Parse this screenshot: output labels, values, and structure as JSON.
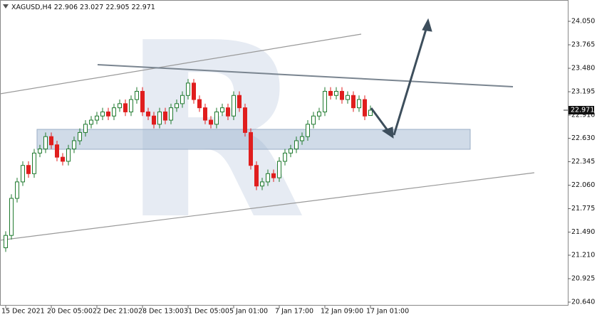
{
  "chart_data": {
    "type": "candlestick",
    "symbol": "XAGUSD,H4",
    "categories": [
      "15 Dec 2021",
      null,
      null,
      null,
      null,
      null,
      null,
      null,
      "20 Dec 05:00",
      null,
      null,
      null,
      null,
      null,
      null,
      null,
      "22 Dec 21:00",
      null,
      null,
      null,
      null,
      null,
      null,
      null,
      "28 Dec 13:00",
      null,
      null,
      null,
      null,
      null,
      null,
      null,
      "31 Dec 05:00",
      null,
      null,
      null,
      null,
      null,
      null,
      null,
      "5 Jan 01:00",
      null,
      null,
      null,
      null,
      null,
      null,
      null,
      "7 Jan 17:00",
      null,
      null,
      null,
      null,
      null,
      null,
      null,
      "12 Jan 09:00",
      null,
      null,
      null,
      null,
      null,
      null,
      null,
      "17 Jan 01:00"
    ],
    "open": [
      21.3,
      21.45,
      21.9,
      22.1,
      22.3,
      22.2,
      22.45,
      22.5,
      22.65,
      22.55,
      22.4,
      22.35,
      22.5,
      22.6,
      22.7,
      22.8,
      22.85,
      22.9,
      22.95,
      22.9,
      23.0,
      23.05,
      22.95,
      23.1,
      23.2,
      22.95,
      22.9,
      22.8,
      22.95,
      22.85,
      23.0,
      23.05,
      23.15,
      23.3,
      23.1,
      23.0,
      22.85,
      22.8,
      22.95,
      23.0,
      22.9,
      23.15,
      23.0,
      22.7,
      22.3,
      22.05,
      22.1,
      22.2,
      22.15,
      22.35,
      22.45,
      22.5,
      22.6,
      22.65,
      22.8,
      22.9,
      22.95,
      23.2,
      23.15,
      23.2,
      23.1,
      23.15,
      23.0,
      23.1,
      22.906
    ],
    "high": [
      21.5,
      21.95,
      22.15,
      22.35,
      22.35,
      22.5,
      22.55,
      22.7,
      22.7,
      22.6,
      22.45,
      22.55,
      22.65,
      22.75,
      22.85,
      22.9,
      22.95,
      23.0,
      23.0,
      23.05,
      23.1,
      23.1,
      23.15,
      23.25,
      23.25,
      23.0,
      22.95,
      23.0,
      23.0,
      23.05,
      23.1,
      23.2,
      23.35,
      23.35,
      23.15,
      23.05,
      22.9,
      23.0,
      23.05,
      23.05,
      23.2,
      23.2,
      23.05,
      22.75,
      22.35,
      22.15,
      22.25,
      22.25,
      22.4,
      22.5,
      22.55,
      22.65,
      22.7,
      22.85,
      22.95,
      23.0,
      23.25,
      23.25,
      23.25,
      23.25,
      23.2,
      23.2,
      23.15,
      23.15,
      23.027
    ],
    "low": [
      21.25,
      21.4,
      21.85,
      22.05,
      22.15,
      22.15,
      22.4,
      22.45,
      22.5,
      22.35,
      22.3,
      22.3,
      22.45,
      22.55,
      22.65,
      22.75,
      22.8,
      22.85,
      22.85,
      22.85,
      22.95,
      22.9,
      22.9,
      23.05,
      22.9,
      22.85,
      22.75,
      22.75,
      22.8,
      22.8,
      22.95,
      23.0,
      23.1,
      23.05,
      22.95,
      22.8,
      22.75,
      22.75,
      22.9,
      22.85,
      22.85,
      22.95,
      22.65,
      22.25,
      22.0,
      22.0,
      22.05,
      22.1,
      22.1,
      22.3,
      22.4,
      22.45,
      22.55,
      22.6,
      22.75,
      22.85,
      22.9,
      23.1,
      23.1,
      23.05,
      23.05,
      22.95,
      22.95,
      22.85,
      22.905
    ],
    "close": [
      21.45,
      21.9,
      22.1,
      22.3,
      22.2,
      22.45,
      22.5,
      22.65,
      22.55,
      22.4,
      22.35,
      22.5,
      22.6,
      22.7,
      22.8,
      22.85,
      22.9,
      22.95,
      22.9,
      23.0,
      23.05,
      22.95,
      23.1,
      23.2,
      22.95,
      22.9,
      22.8,
      22.95,
      22.85,
      23.0,
      23.05,
      23.15,
      23.3,
      23.1,
      23.0,
      22.85,
      22.8,
      22.95,
      23.0,
      22.9,
      23.15,
      23.0,
      22.7,
      22.3,
      22.05,
      22.1,
      22.2,
      22.15,
      22.35,
      22.45,
      22.5,
      22.6,
      22.65,
      22.8,
      22.9,
      22.95,
      23.2,
      23.15,
      23.2,
      23.1,
      23.15,
      23.0,
      23.1,
      22.9,
      22.971
    ],
    "up_color": "#1f7a2e",
    "down_color": "#e01e1e",
    "ylim": [
      20.597,
      24.309
    ],
    "yticks": [
      {
        "value": 20.64,
        "label": "20.640"
      },
      20.925,
      {
        "value": 21.21,
        "label": "21.210"
      },
      {
        "value": 21.49,
        "label": "21.490"
      },
      21.775,
      {
        "value": 22.06,
        "label": "22.060"
      },
      22.345,
      {
        "value": 22.63,
        "label": "22.630"
      },
      {
        "value": 22.91,
        "label": "22.910"
      },
      23.195,
      {
        "value": 23.48,
        "label": "23.480"
      },
      23.765,
      {
        "value": 24.05,
        "label": "24.050"
      }
    ],
    "grid": false
  }
}
